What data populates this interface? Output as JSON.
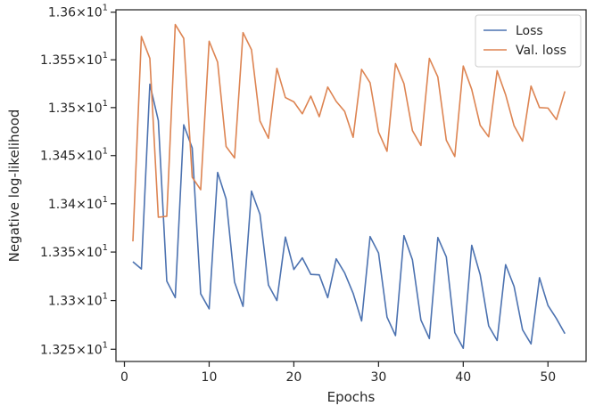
{
  "chart_data": {
    "type": "line",
    "title": "",
    "xlabel": "Epochs",
    "ylabel": "Negative log-likelihood",
    "xlim": [
      -1,
      54.5
    ],
    "ylim": [
      13.2375,
      13.6025
    ],
    "y_scale": "log",
    "grid": false,
    "legend_position": "top-right",
    "xticks": [
      {
        "value": 0,
        "label": "0"
      },
      {
        "value": 10,
        "label": "10"
      },
      {
        "value": 20,
        "label": "20"
      },
      {
        "value": 30,
        "label": "30"
      },
      {
        "value": 40,
        "label": "40"
      },
      {
        "value": 50,
        "label": "50"
      }
    ],
    "yticks": [
      {
        "value": 13.25,
        "mantissa": "1.325",
        "base": "10",
        "exponent": "1"
      },
      {
        "value": 13.3,
        "mantissa": "1.33",
        "base": "10",
        "exponent": "1"
      },
      {
        "value": 13.35,
        "mantissa": "1.335",
        "base": "10",
        "exponent": "1"
      },
      {
        "value": 13.4,
        "mantissa": "1.34",
        "base": "10",
        "exponent": "1"
      },
      {
        "value": 13.45,
        "mantissa": "1.345",
        "base": "10",
        "exponent": "1"
      },
      {
        "value": 13.5,
        "mantissa": "1.35",
        "base": "10",
        "exponent": "1"
      },
      {
        "value": 13.55,
        "mantissa": "1.355",
        "base": "10",
        "exponent": "1"
      },
      {
        "value": 13.6,
        "mantissa": "1.36",
        "base": "10",
        "exponent": "1"
      }
    ],
    "x": [
      1,
      2,
      3,
      4,
      5,
      6,
      7,
      8,
      9,
      10,
      11,
      12,
      13,
      14,
      15,
      16,
      17,
      18,
      19,
      20,
      21,
      22,
      23,
      24,
      25,
      26,
      27,
      28,
      29,
      30,
      31,
      32,
      33,
      34,
      35,
      36,
      37,
      38,
      39,
      40,
      41,
      42,
      43,
      44,
      45,
      46,
      47,
      48,
      49,
      50,
      51,
      52
    ],
    "series": [
      {
        "name": "Loss",
        "color": "#4c72b0",
        "values": [
          13.34,
          13.3325,
          13.5245,
          13.4865,
          13.32,
          13.303,
          13.482,
          13.458,
          13.307,
          13.2915,
          13.4325,
          13.405,
          13.319,
          13.294,
          13.413,
          13.389,
          13.316,
          13.3,
          13.3655,
          13.332,
          13.344,
          13.327,
          13.3265,
          13.303,
          13.343,
          13.3285,
          13.3075,
          13.279,
          13.366,
          13.349,
          13.283,
          13.264,
          13.367,
          13.342,
          13.28,
          13.261,
          13.365,
          13.345,
          13.267,
          13.251,
          13.357,
          13.3265,
          13.274,
          13.259,
          13.337,
          13.3145,
          13.27,
          13.2555,
          13.3235,
          13.295,
          13.2815,
          13.266
        ]
      },
      {
        "name": "Val. loss",
        "color": "#dd8452",
        "values": [
          13.361,
          13.5745,
          13.5515,
          13.386,
          13.387,
          13.587,
          13.5725,
          13.4275,
          13.4145,
          13.5695,
          13.5475,
          13.4595,
          13.4475,
          13.5785,
          13.5605,
          13.486,
          13.468,
          13.541,
          13.5105,
          13.506,
          13.4935,
          13.512,
          13.4905,
          13.5215,
          13.5065,
          13.496,
          13.469,
          13.54,
          13.526,
          13.4745,
          13.4545,
          13.546,
          13.525,
          13.476,
          13.4605,
          13.5515,
          13.532,
          13.466,
          13.449,
          13.5435,
          13.519,
          13.4815,
          13.4695,
          13.5385,
          13.5135,
          13.481,
          13.465,
          13.5225,
          13.5,
          13.4995,
          13.4875,
          13.517
        ]
      }
    ]
  }
}
